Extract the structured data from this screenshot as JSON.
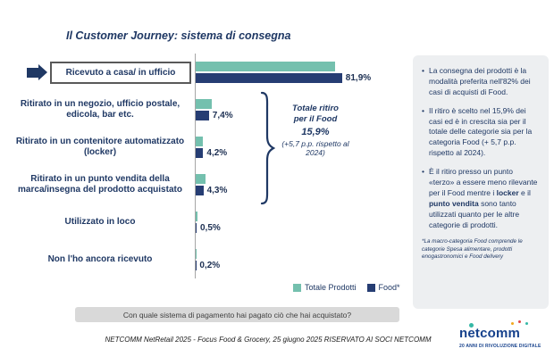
{
  "slide": {
    "title": "Il Customer Journey: sistema di consegna",
    "question": "Con quale sistema di pagamento hai pagato ciò che hai acquistato?",
    "footer": "NETCOMM NetRetail 2025 - Focus Food & Grocery, 25 giugno 2025  RISERVATO AI SOCI NETCOMM"
  },
  "chart_data": {
    "type": "bar",
    "orientation": "horizontal",
    "categories": [
      "Ricevuto a casa/ in ufficio",
      "Ritirato in un negozio, ufficio postale, edicola, bar etc.",
      "Ritirato in un contenitore automatizzato (locker)",
      "Ritirato in un punto vendita della marca/insegna del prodotto acquistato",
      "Utilizzato in loco",
      "Non l'ho ancora ricevuto"
    ],
    "series": [
      {
        "name": "Totale Prodotti",
        "color": "#74c0ae",
        "values": [
          78,
          9,
          4,
          5.5,
          1,
          0.4
        ]
      },
      {
        "name": "Food*",
        "color": "#263d73",
        "values": [
          81.9,
          7.4,
          4.2,
          4.3,
          0.5,
          0.2
        ],
        "value_labels": [
          "81,9%",
          "7,4%",
          "4,2%",
          "4,3%",
          "0,5%",
          "0,2%"
        ]
      }
    ],
    "xlim": [
      0,
      90
    ],
    "grid": false,
    "legend_position": "bottom-right",
    "highlighted_category": "Ricevuto a casa/ in ufficio",
    "annotation_group": "rows 2-4 (ritiro)"
  },
  "annotation": {
    "line1": "Totale ritiro",
    "line2": "per il Food",
    "value": "15,9%",
    "note": "(+5,7 p.p. rispetto al 2024)"
  },
  "sidebar": {
    "bullets": [
      {
        "segments": [
          {
            "text": "La consegna dei prodotti è la modalità preferita nell'82% dei casi di acquisti di Food.",
            "bold": false
          }
        ]
      },
      {
        "segments": [
          {
            "text": "Il ritiro è scelto nel 15,9% dei casi ed è in crescita sia per il totale delle categorie sia per la categoria Food  (+ 5,7 p.p. rispetto al 2024).",
            "bold": false
          }
        ]
      },
      {
        "segments": [
          {
            "text": "È il ritiro presso un punto «terzo» a essere meno rilevante per il Food mentre i ",
            "bold": false
          },
          {
            "text": "locker",
            "bold": true
          },
          {
            "text": " e il ",
            "bold": false
          },
          {
            "text": "punto vendita",
            "bold": true
          },
          {
            "text": " sono tanto utilizzati quanto per le altre categorie di prodotti.",
            "bold": false
          }
        ]
      }
    ],
    "footnote": "*La macro-categoria Food comprende le categorie Spesa alimentare, prodotti enogastronomici e Food delivery"
  },
  "logo": {
    "brand": "netcomm",
    "tagline": "20 ANNI DI RIVOLUZIONE DIGITALE"
  },
  "colors": {
    "navy": "#1f3864",
    "teal": "#74c0ae",
    "panel_bg": "#edeff1",
    "strip_bg": "#d9d9d9"
  }
}
